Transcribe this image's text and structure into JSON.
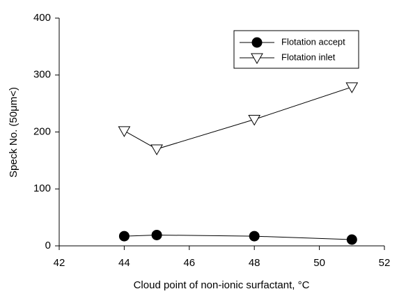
{
  "chart_data": {
    "type": "line",
    "x_label": "Cloud point of non-ionic surfactant, °C",
    "y_label": "Speck No. (50μm<)",
    "x": [
      44,
      45,
      48,
      51
    ],
    "series": [
      {
        "name": "Flotation accept",
        "color": "#000000",
        "marker": "circle",
        "values": [
          17,
          19,
          17,
          11
        ]
      },
      {
        "name": "Flotation inlet",
        "color": "#000000",
        "marker": "triangle-down",
        "values": [
          202,
          170,
          222,
          279
        ]
      }
    ],
    "xlim": [
      42,
      52
    ],
    "xticks": [
      42,
      44,
      46,
      48,
      50,
      52
    ],
    "ylim": [
      0,
      400
    ],
    "yticks": [
      0,
      100,
      200,
      300,
      400
    ],
    "grid": false,
    "legend": "upper right"
  }
}
